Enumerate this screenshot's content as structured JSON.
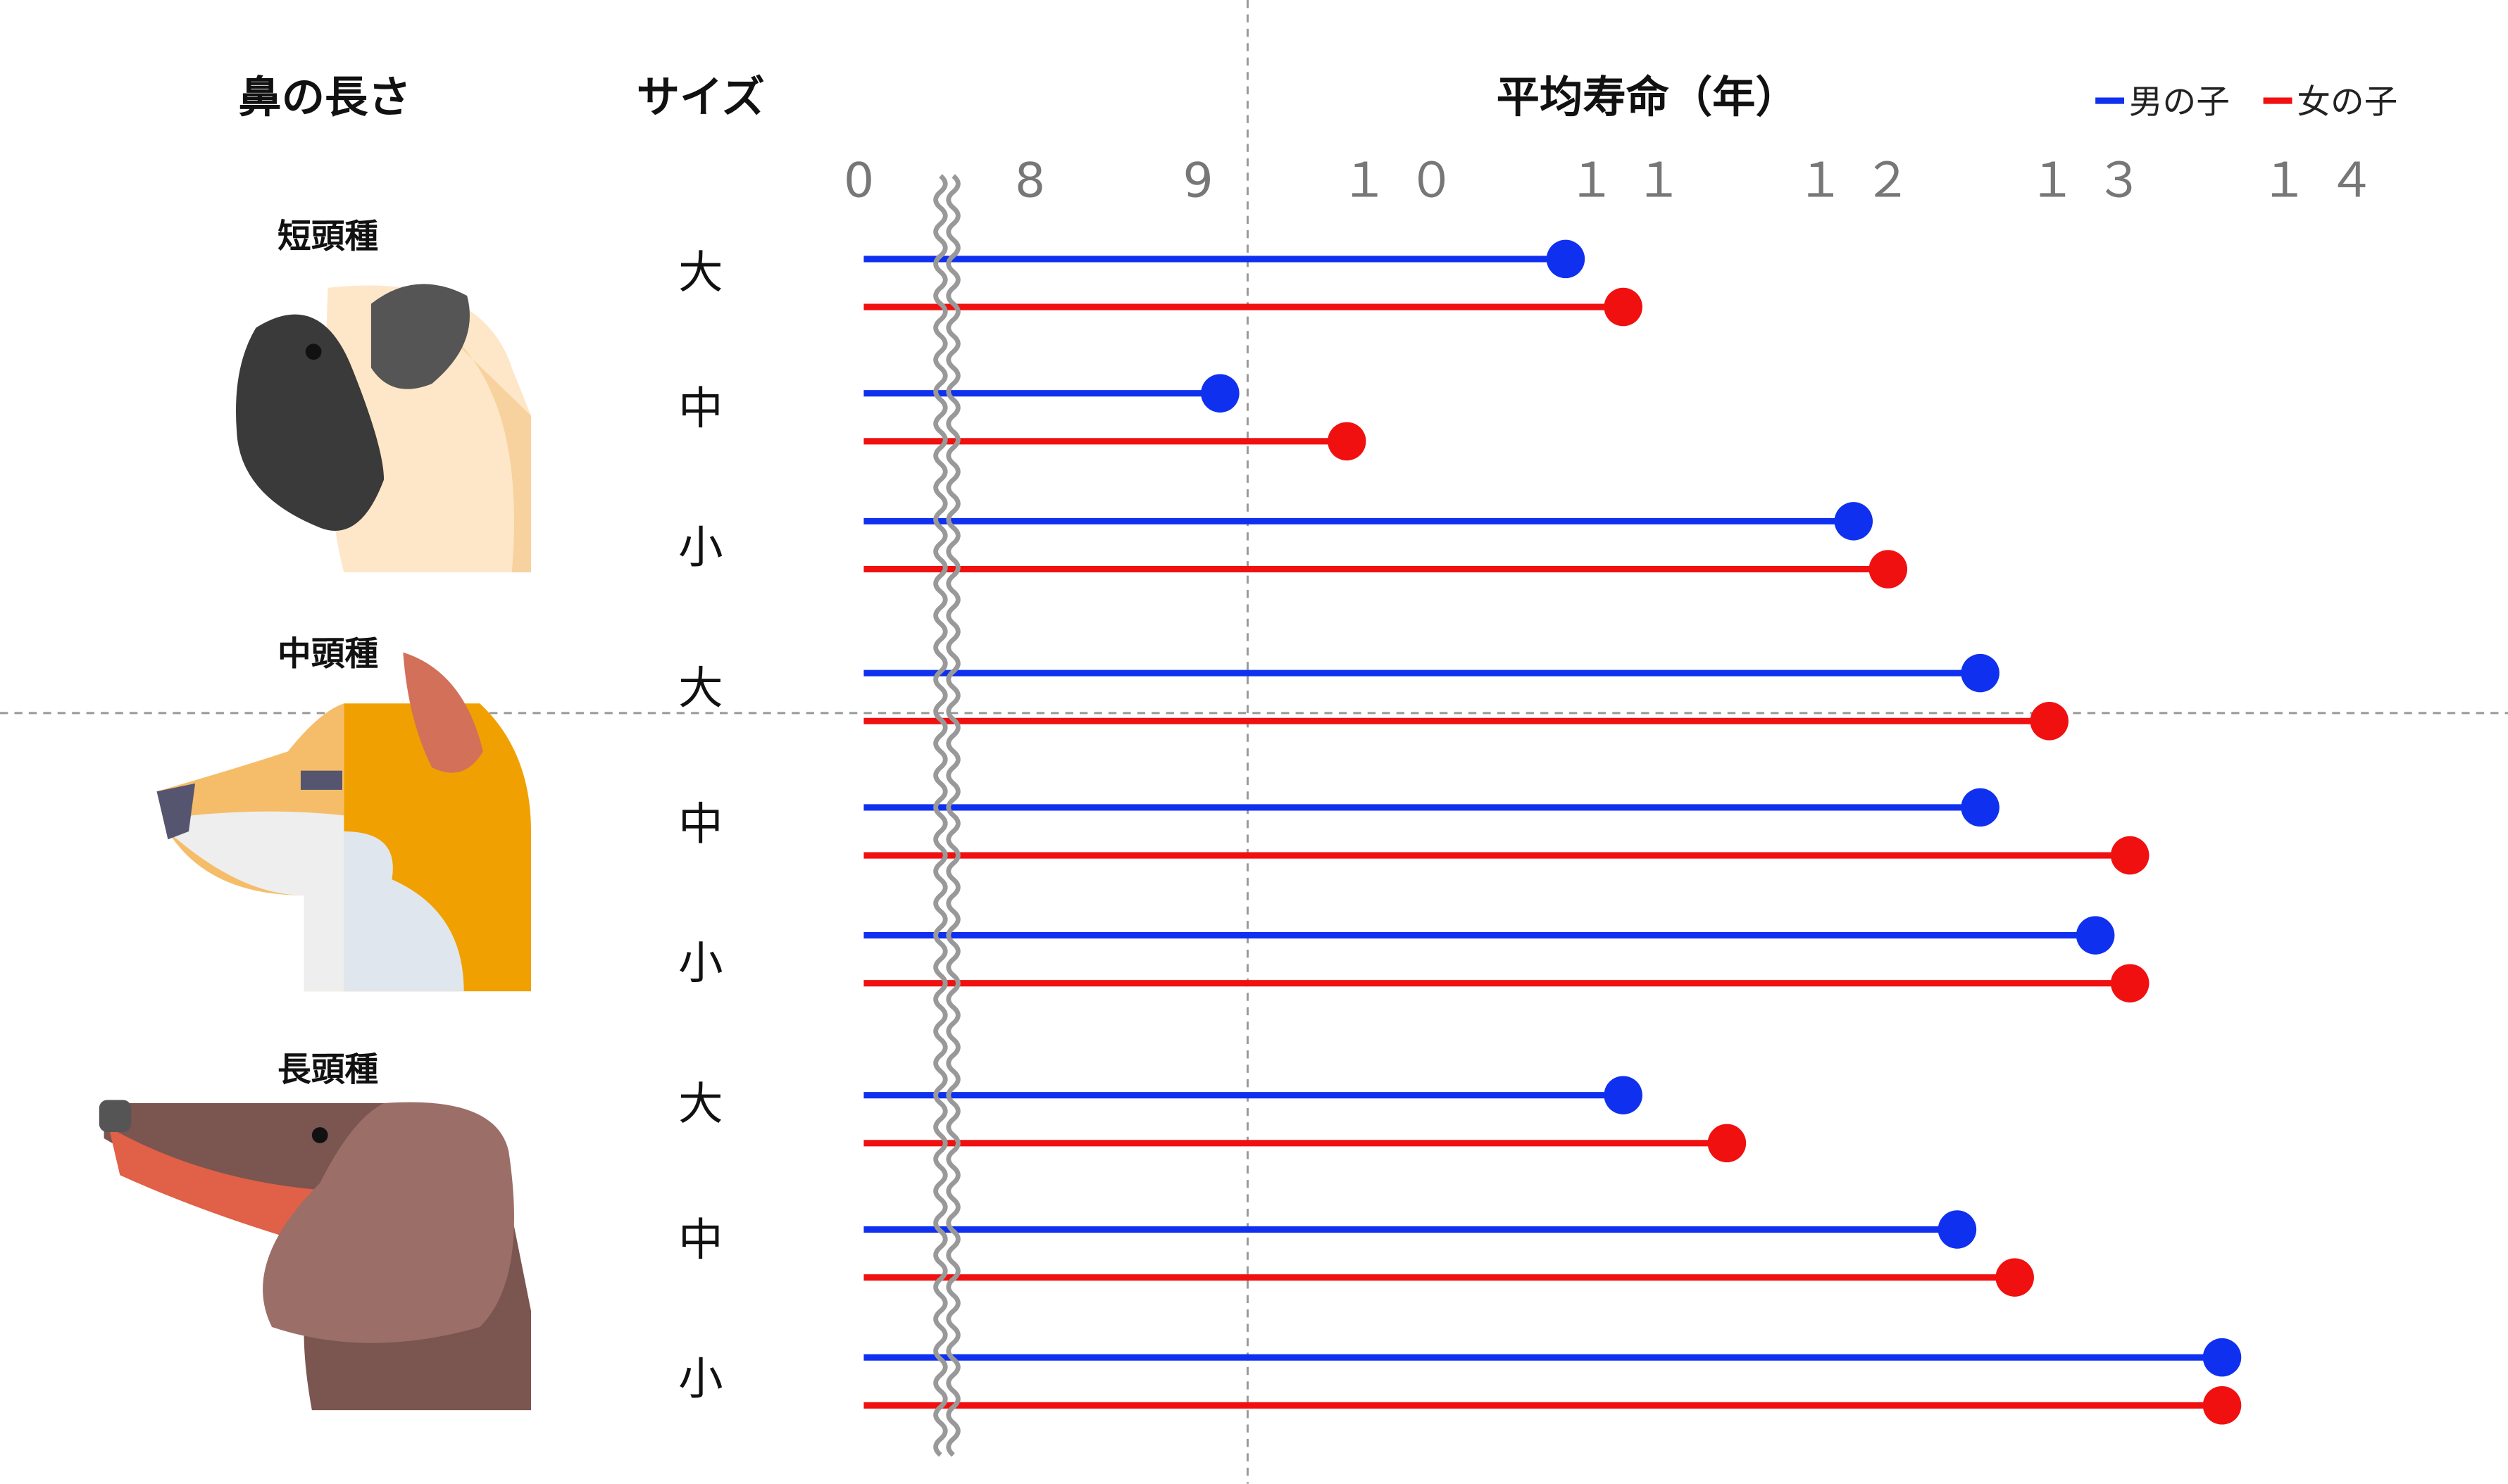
{
  "chart_data": {
    "type": "lollipop",
    "headers": {
      "nose": "鼻の長さ",
      "size": "サイズ",
      "title": "平均寿命（年）"
    },
    "legend": [
      {
        "name": "男の子",
        "color": "#1030f0"
      },
      {
        "name": "女の子",
        "color": "#f01010"
      }
    ],
    "legend_position": "top-right",
    "axis": {
      "ticks": [
        "0",
        "8",
        "9",
        "１０",
        "１１",
        "１２",
        "１３",
        "１４"
      ],
      "broken_axis": true,
      "xlim": [
        8,
        14
      ]
    },
    "groups": [
      {
        "label": "短頭種",
        "rows": [
          {
            "size": "大",
            "male": 10.7,
            "female": 10.95
          },
          {
            "size": "中",
            "male": 9.2,
            "female": 9.75
          },
          {
            "size": "小",
            "male": 11.95,
            "female": 12.1
          }
        ]
      },
      {
        "label": "中頭種",
        "rows": [
          {
            "size": "大",
            "male": 12.5,
            "female": 12.8
          },
          {
            "size": "中",
            "male": 12.5,
            "female": 13.15
          },
          {
            "size": "小",
            "male": 13.0,
            "female": 13.15
          }
        ]
      },
      {
        "label": "長頭種",
        "rows": [
          {
            "size": "大",
            "male": 10.95,
            "female": 11.4
          },
          {
            "size": "中",
            "male": 12.4,
            "female": 12.65
          },
          {
            "size": "小",
            "male": 13.55,
            "female": 13.55
          }
        ]
      }
    ]
  }
}
